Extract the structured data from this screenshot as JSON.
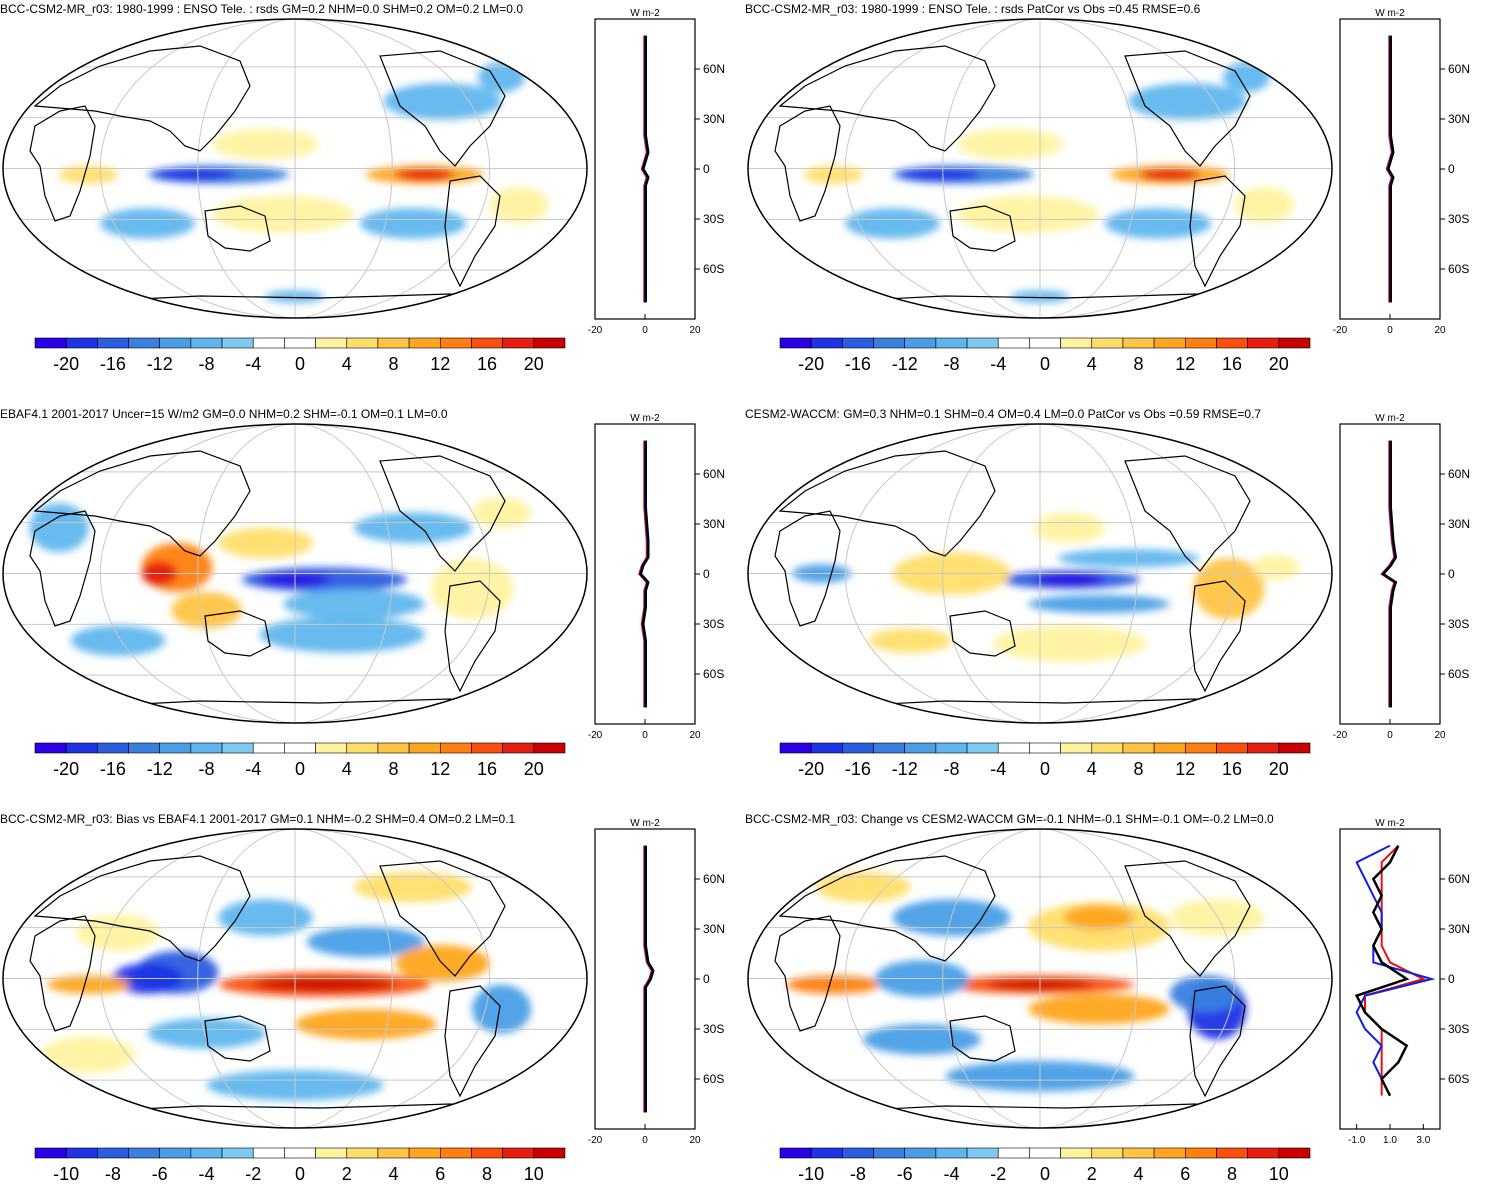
{
  "panels": [
    {
      "title": "BCC-CSM2-MR_r03: 1980-1999 : ENSO Tele. : rsds GM=0.2 NHM=0.0 SHM=0.2 OM=0.2 LM=0.0",
      "profile_ticks": [
        "-20",
        "0",
        "20"
      ],
      "colorbar_labels": [
        "-20",
        "-16",
        "-12",
        "-8",
        "-4",
        "0",
        "4",
        "8",
        "12",
        "16",
        "20"
      ],
      "pattern": "enso_model"
    },
    {
      "title": "BCC-CSM2-MR_r03: 1980-1999 : ENSO Tele. : rsds PatCor vs Obs =0.45 RMSE=0.6",
      "profile_ticks": [
        "-20",
        "0",
        "20"
      ],
      "colorbar_labels": [
        "-20",
        "-16",
        "-12",
        "-8",
        "-4",
        "0",
        "4",
        "8",
        "12",
        "16",
        "20"
      ],
      "pattern": "enso_model"
    },
    {
      "title": "EBAF4.1 2001-2017 Uncer=15 W/m2 GM=0.0 NHM=0.2 SHM=-0.1 OM=0.1 LM=0.0",
      "profile_ticks": [
        "-20",
        "0",
        "20"
      ],
      "colorbar_labels": [
        "-20",
        "-16",
        "-12",
        "-8",
        "-4",
        "0",
        "4",
        "8",
        "12",
        "16",
        "20"
      ],
      "pattern": "obs"
    },
    {
      "title": "CESM2-WACCM: GM=0.3 NHM=0.1 SHM=0.4 OM=0.4 LM=0.0 PatCor vs Obs =0.59 RMSE=0.7",
      "profile_ticks": [
        "-20",
        "0",
        "20"
      ],
      "colorbar_labels": [
        "-20",
        "-16",
        "-12",
        "-8",
        "-4",
        "0",
        "4",
        "8",
        "12",
        "16",
        "20"
      ],
      "pattern": "cesm"
    },
    {
      "title": "BCC-CSM2-MR_r03: Bias vs EBAF4.1 2001-2017 GM=0.1 NHM=-0.2 SHM=0.4 OM=0.2 LM=0.1",
      "profile_ticks": [
        "-20",
        "0",
        "20"
      ],
      "colorbar_labels": [
        "-10",
        "-8",
        "-6",
        "-4",
        "-2",
        "0",
        "2",
        "4",
        "6",
        "8",
        "10"
      ],
      "pattern": "bias"
    },
    {
      "title": "BCC-CSM2-MR_r03: Change vs CESM2-WACCM GM=-0.1 NHM=-0.1 SHM=-0.1 OM=-0.2 LM=0.0",
      "profile_ticks": [
        "-1.0",
        "1.0",
        "3.0"
      ],
      "colorbar_labels": [
        "-10",
        "-8",
        "-6",
        "-4",
        "-2",
        "0",
        "2",
        "4",
        "6",
        "8",
        "10"
      ],
      "pattern": "change"
    }
  ],
  "latitude_labels": [
    "60N",
    "30N",
    "0",
    "30S",
    "60S"
  ],
  "profile_units": "W m-2",
  "colormap": [
    "#2b00e6",
    "#1f33e6",
    "#2a5de0",
    "#3a7fe0",
    "#4a9ee6",
    "#5fb6ee",
    "#7fcaf2",
    "#ffffff",
    "#ffffff",
    "#fff3a0",
    "#ffdf6b",
    "#ffc445",
    "#ffa520",
    "#ff7f10",
    "#f95010",
    "#e51e10",
    "#c80000"
  ],
  "chart_data": [
    {
      "type": "heatmap",
      "title": "BCC-CSM2-MR_r03: 1980-1999 : ENSO Tele. : rsds GM=0.2 NHM=0.0 SHM=0.2 OM=0.2 LM=0.0",
      "colorbar_range": [
        -20,
        20
      ],
      "profile": {
        "xlim": [
          -20,
          20
        ],
        "series": [
          {
            "lat": [
              80,
              60,
              40,
              20,
              10,
              5,
              0,
              -5,
              -10,
              -20,
              -30,
              -40,
              -60,
              -80
            ],
            "values": [
              0,
              0,
              0,
              0,
              1,
              0,
              -1,
              1,
              0,
              0,
              0,
              0,
              0,
              0
            ]
          }
        ]
      }
    },
    {
      "type": "heatmap",
      "title": "BCC-CSM2-MR_r03: 1980-1999 : ENSO Tele. : rsds PatCor vs Obs =0.45 RMSE=0.6",
      "colorbar_range": [
        -20,
        20
      ],
      "profile": {
        "xlim": [
          -20,
          20
        ],
        "series": [
          {
            "lat": [
              80,
              60,
              40,
              20,
              10,
              5,
              0,
              -5,
              -10,
              -20,
              -30,
              -40,
              -60,
              -80
            ],
            "values": [
              0,
              0,
              0,
              0,
              1,
              0,
              -1,
              1,
              0,
              0,
              0,
              0,
              0,
              0
            ]
          }
        ]
      }
    },
    {
      "type": "heatmap",
      "title": "EBAF4.1 2001-2017 Uncer=15 W/m2 GM=0.0 NHM=0.2 SHM=-0.1 OM=0.1 LM=0.0",
      "colorbar_range": [
        -20,
        20
      ],
      "profile": {
        "xlim": [
          -20,
          20
        ],
        "series": [
          {
            "lat": [
              80,
              60,
              40,
              20,
              10,
              5,
              0,
              -5,
              -10,
              -20,
              -30,
              -40,
              -60,
              -80
            ],
            "values": [
              0,
              0,
              0,
              1,
              1,
              -1,
              -2,
              1,
              0,
              0,
              -1,
              0,
              0,
              0
            ]
          }
        ]
      }
    },
    {
      "type": "heatmap",
      "title": "CESM2-WACCM: GM=0.3 NHM=0.1 SHM=0.4 OM=0.4 LM=0.0 PatCor vs Obs =0.59 RMSE=0.7",
      "colorbar_range": [
        -20,
        20
      ],
      "profile": {
        "xlim": [
          -20,
          20
        ],
        "series": [
          {
            "lat": [
              80,
              60,
              40,
              20,
              10,
              5,
              0,
              -5,
              -10,
              -20,
              -30,
              -40,
              -60,
              -80
            ],
            "values": [
              0,
              0,
              0,
              1,
              2,
              0,
              -3,
              2,
              1,
              0,
              0,
              0,
              0,
              0
            ]
          }
        ]
      }
    },
    {
      "type": "heatmap",
      "title": "BCC-CSM2-MR_r03: Bias vs EBAF4.1 2001-2017 GM=0.1 NHM=-0.2 SHM=0.4 OM=0.2 LM=0.1",
      "colorbar_range": [
        -10,
        10
      ],
      "profile": {
        "xlim": [
          -20,
          20
        ],
        "series": [
          {
            "lat": [
              80,
              60,
              40,
              20,
              10,
              5,
              0,
              -5,
              -10,
              -20,
              -30,
              -40,
              -60,
              -80
            ],
            "values": [
              0,
              0,
              0,
              0,
              1,
              3,
              2,
              0,
              0,
              0,
              0,
              0,
              0,
              0
            ]
          }
        ]
      }
    },
    {
      "type": "heatmap",
      "title": "BCC-CSM2-MR_r03: Change vs CESM2-WACCM GM=-0.1 NHM=-0.1 SHM=-0.1 OM=-0.2 LM=0.0",
      "colorbar_range": [
        -10,
        10
      ],
      "profile": {
        "xlim": [
          -2,
          4
        ],
        "series": [
          {
            "lat": [
              80,
              70,
              60,
              50,
              40,
              30,
              20,
              10,
              0,
              -10,
              -20,
              -30,
              -40,
              -50,
              -60,
              -70
            ],
            "values": [
              1.5,
              0.5,
              0.5,
              0.5,
              0.5,
              0.5,
              0.5,
              1.0,
              3.0,
              -0.5,
              -0.5,
              0.5,
              0.5,
              0.5,
              0.5,
              0.5
            ]
          },
          {
            "lat": [
              80,
              70,
              60,
              50,
              40,
              30,
              20,
              10,
              0,
              -10,
              -20,
              -30,
              -40,
              -50,
              -60,
              -70
            ],
            "values": [
              1.0,
              -1.0,
              -0.5,
              0.0,
              0.5,
              0.5,
              0.0,
              0.0,
              3.5,
              -0.5,
              -1.0,
              -0.5,
              0.5,
              0.0,
              0.5,
              1.0
            ]
          },
          {
            "lat": [
              80,
              70,
              60,
              50,
              40,
              30,
              20,
              10,
              0,
              -10,
              -20,
              -30,
              -40,
              -50,
              -60,
              -70
            ],
            "values": [
              1.5,
              1.0,
              0.0,
              0.5,
              0.0,
              0.5,
              0.0,
              0.5,
              2.0,
              -1.0,
              -0.5,
              0.5,
              2.0,
              1.5,
              0.5,
              1.0
            ]
          }
        ]
      }
    }
  ]
}
